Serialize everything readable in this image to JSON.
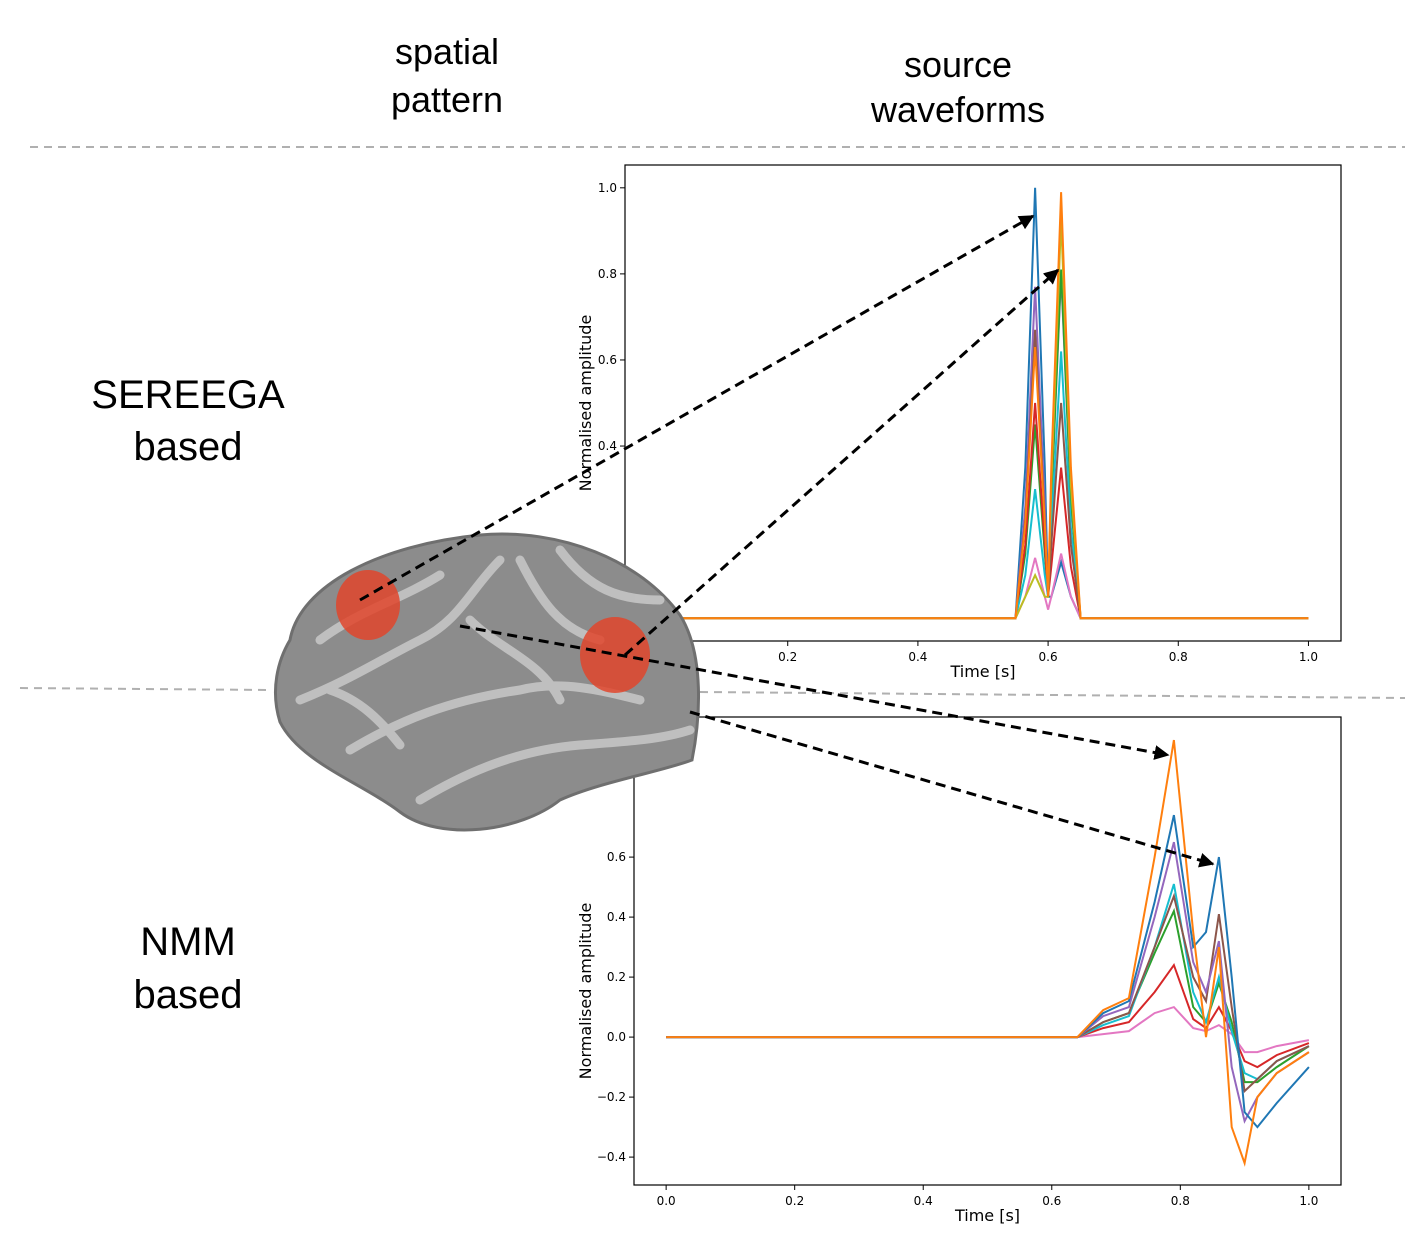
{
  "columns": [
    [
      "spatial",
      "pattern"
    ],
    [
      "source",
      "waveforms"
    ]
  ],
  "rows": [
    [
      "SEREEGA",
      "based"
    ],
    [
      "NMM",
      "based"
    ]
  ],
  "chart_data": [
    {
      "type": "line",
      "xlabel": "Time [s]",
      "ylabel": "Normalised amplitude",
      "xlim": [
        -0.05,
        1.05
      ],
      "ylim": [
        -0.053,
        1.053
      ],
      "xticks": [
        0.2,
        0.4,
        0.6,
        0.8,
        {
          "value": 1,
          "label": "1.0"
        }
      ],
      "yticks": [
        0.4,
        0.6,
        0.8,
        {
          "value": 1,
          "label": "1.0"
        }
      ],
      "x": [
        0,
        0.55,
        0.565,
        0.58,
        0.595,
        0.6,
        0.605,
        0.62,
        0.635,
        0.65,
        1.0
      ],
      "series": [
        {
          "color": "#1f77b4",
          "values": [
            0,
            0,
            0.35,
            1.0,
            0.35,
            0.05,
            0.05,
            0.13,
            0.05,
            0,
            0
          ]
        },
        {
          "color": "#9467bd",
          "values": [
            0,
            0,
            0.26,
            0.77,
            0.26,
            0.05,
            0.27,
            0.8,
            0.27,
            0,
            0
          ]
        },
        {
          "color": "#2ca02c",
          "values": [
            0,
            0,
            0.15,
            0.45,
            0.15,
            0.05,
            0.28,
            0.81,
            0.28,
            0,
            0
          ]
        },
        {
          "color": "#d62728",
          "values": [
            0,
            0,
            0.17,
            0.5,
            0.17,
            0.05,
            0.12,
            0.35,
            0.12,
            0,
            0
          ]
        },
        {
          "color": "#e377c2",
          "values": [
            0,
            0,
            0.05,
            0.14,
            0.05,
            0.02,
            0.05,
            0.15,
            0.05,
            0,
            0
          ]
        },
        {
          "color": "#17becf",
          "values": [
            0,
            0,
            0.1,
            0.3,
            0.1,
            0.05,
            0.21,
            0.62,
            0.21,
            0,
            0
          ]
        },
        {
          "color": "#8c564b",
          "values": [
            0,
            0,
            0.23,
            0.67,
            0.23,
            0.05,
            0.17,
            0.5,
            0.17,
            0,
            0
          ]
        },
        {
          "color": "#bcbd22",
          "values": [
            0,
            0,
            0.05,
            0.1,
            0.05,
            0.05,
            0.31,
            0.93,
            0.31,
            0,
            0
          ]
        },
        {
          "color": "#ff7f0e",
          "values": [
            0,
            0,
            0.22,
            0.63,
            0.22,
            0.05,
            0.35,
            0.99,
            0.35,
            0,
            0
          ]
        }
      ]
    },
    {
      "type": "line",
      "xlabel": "Time [s]",
      "ylabel": "Normalised amplitude",
      "xlim": [
        -0.05,
        1.05
      ],
      "ylim": [
        -0.493,
        1.067
      ],
      "xticks": [
        {
          "value": 0,
          "label": "0.0"
        },
        0.2,
        0.4,
        0.6,
        0.8,
        {
          "value": 1,
          "label": "1.0"
        }
      ],
      "yticks": [
        {
          "value": -0.4,
          "label": "−0.4"
        },
        {
          "value": -0.2,
          "label": "−0.2"
        },
        {
          "value": 0,
          "label": "0.0"
        },
        0.2,
        0.4,
        0.6
      ],
      "x": [
        0,
        0.64,
        0.68,
        0.72,
        0.76,
        0.79,
        0.82,
        0.84,
        0.86,
        0.88,
        0.9,
        0.92,
        0.95,
        1.0
      ],
      "series": [
        {
          "color": "#e377c2",
          "values": [
            0,
            0,
            0.01,
            0.02,
            0.08,
            0.1,
            0.03,
            0.02,
            0.04,
            0.01,
            -0.05,
            -0.05,
            -0.03,
            -0.01
          ]
        },
        {
          "color": "#d62728",
          "values": [
            0,
            0,
            0.03,
            0.05,
            0.15,
            0.24,
            0.06,
            0.03,
            0.1,
            0.02,
            -0.08,
            -0.1,
            -0.06,
            -0.02
          ]
        },
        {
          "color": "#2ca02c",
          "values": [
            0,
            0,
            0.05,
            0.08,
            0.28,
            0.42,
            0.1,
            0.05,
            0.18,
            0.05,
            -0.15,
            -0.15,
            -0.1,
            -0.03
          ]
        },
        {
          "color": "#17becf",
          "values": [
            0,
            0,
            0.04,
            0.07,
            0.3,
            0.51,
            0.15,
            0.05,
            0.2,
            0.02,
            -0.12,
            -0.14,
            -0.08,
            -0.03
          ]
        },
        {
          "color": "#8c564b",
          "values": [
            0,
            0,
            0.05,
            0.08,
            0.3,
            0.47,
            0.2,
            0.12,
            0.41,
            0.1,
            -0.18,
            -0.14,
            -0.08,
            -0.03
          ]
        },
        {
          "color": "#9467bd",
          "values": [
            0,
            0,
            0.07,
            0.1,
            0.4,
            0.65,
            0.25,
            0.15,
            0.32,
            -0.1,
            -0.28,
            -0.2,
            -0.12,
            -0.05
          ]
        },
        {
          "color": "#1f77b4",
          "values": [
            0,
            0,
            0.08,
            0.12,
            0.45,
            0.74,
            0.3,
            0.35,
            0.6,
            0.2,
            -0.25,
            -0.3,
            -0.22,
            -0.1
          ]
        },
        {
          "color": "#ff7f0e",
          "values": [
            0,
            0,
            0.09,
            0.13,
            0.6,
            0.99,
            0.35,
            0,
            0.3,
            -0.3,
            -0.42,
            -0.2,
            -0.12,
            -0.05
          ]
        }
      ]
    }
  ]
}
